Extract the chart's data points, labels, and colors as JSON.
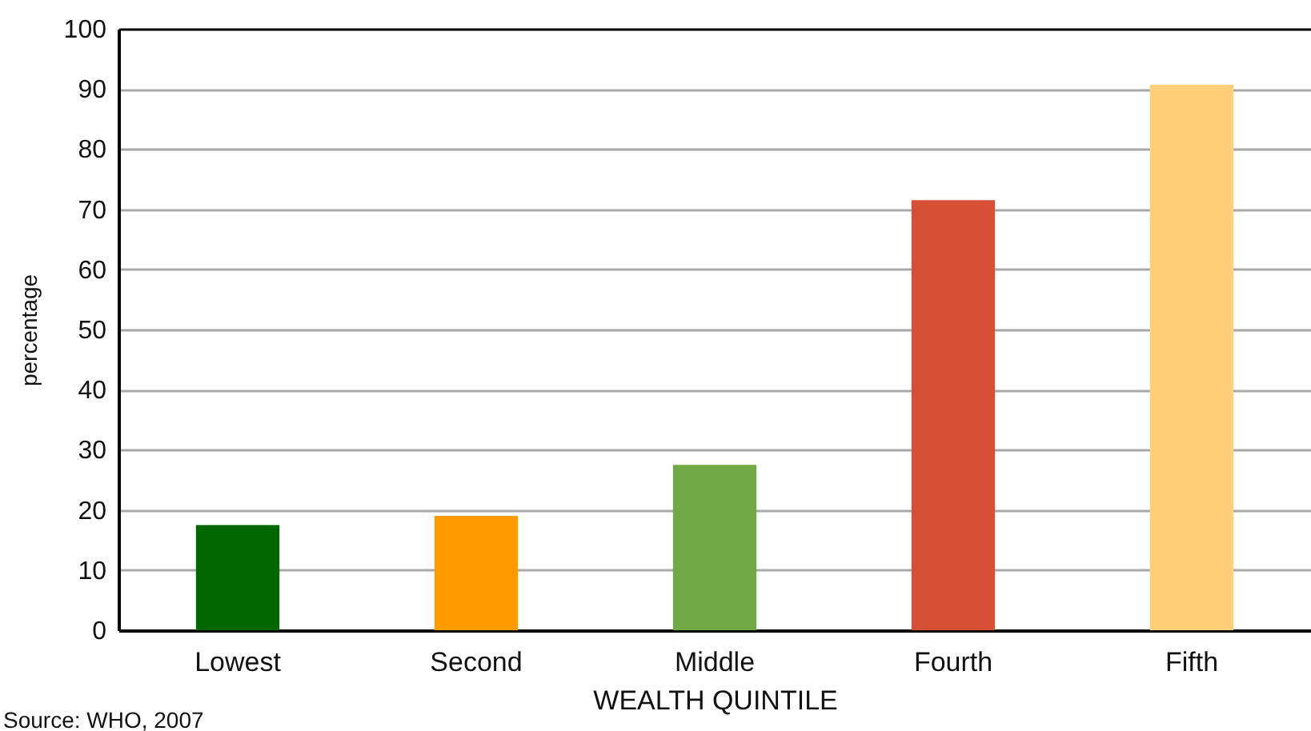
{
  "chart_data": {
    "type": "bar",
    "categories": [
      "Lowest",
      "Second",
      "Middle",
      "Fourth",
      "Fifth"
    ],
    "values": [
      17.5,
      19,
      27.5,
      71.5,
      90.7
    ],
    "colors": [
      "#006600",
      "#ff9b00",
      "#72a845",
      "#d65038",
      "#ffce78"
    ],
    "xlabel": "WEALTH QUINTILE",
    "ylabel": "percentage",
    "ylim": [
      0,
      100
    ],
    "yticks": [
      0,
      10,
      20,
      30,
      40,
      50,
      60,
      70,
      80,
      90,
      100
    ],
    "grid": "y",
    "annotations": [
      "Source: WHO, 2007"
    ]
  }
}
